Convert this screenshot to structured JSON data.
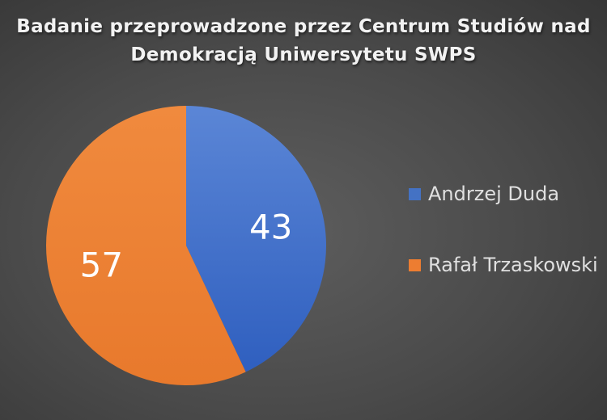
{
  "chart_data": {
    "type": "pie",
    "title_lines": [
      "Badanie przeprowadzone przez Centrum Studiów nad",
      "Demokracją Uniwersytetu SWPS"
    ],
    "categories": [
      "Andrzej Duda",
      "Rafał Trzaskowski"
    ],
    "values": [
      43,
      57
    ],
    "data_labels": [
      "43",
      "57"
    ],
    "colors": [
      "#4472c4",
      "#ed7d31"
    ],
    "legend_position": "right"
  }
}
